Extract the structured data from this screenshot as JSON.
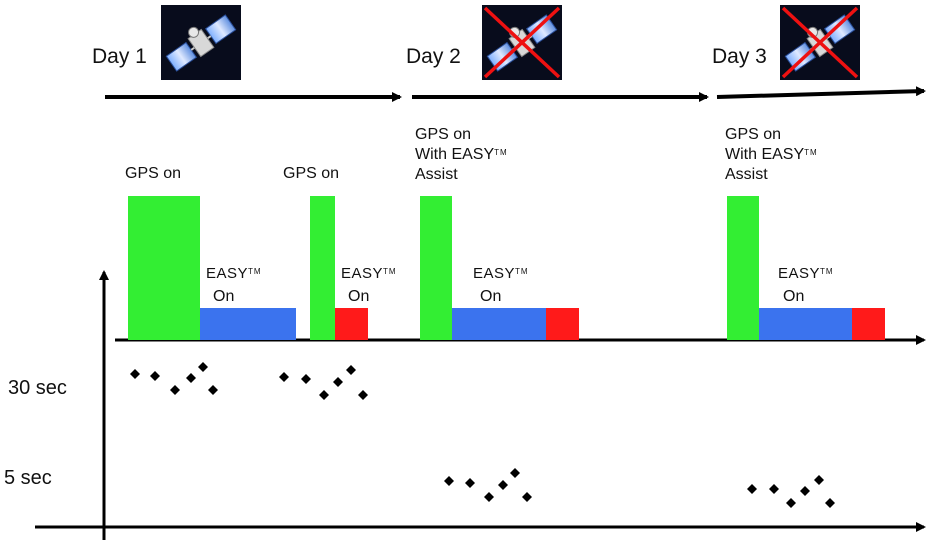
{
  "days": [
    {
      "id": "day1",
      "label": "Day 1",
      "satellite_icon": "satellite-icon",
      "crossed_out": false
    },
    {
      "id": "day2",
      "label": "Day 2",
      "satellite_icon": "satellite-icon",
      "crossed_out": true
    },
    {
      "id": "day3",
      "label": "Day 3",
      "satellite_icon": "satellite-icon",
      "crossed_out": true
    }
  ],
  "events": [
    {
      "id": "e1",
      "gps_label_lines": [
        "GPS on"
      ],
      "easy_label": "EASY",
      "easy_tm": "TM",
      "easy_on": "On"
    },
    {
      "id": "e2",
      "gps_label_lines": [
        "GPS on"
      ],
      "easy_label": "EASY",
      "easy_tm": "TM",
      "easy_on": "On"
    },
    {
      "id": "e3",
      "gps_label_lines": [
        "GPS on",
        "With EASY",
        "Assist"
      ],
      "gps_label_tm": "TM",
      "easy_label": "EASY",
      "easy_tm": "TM",
      "easy_on": "On"
    },
    {
      "id": "e4",
      "gps_label_lines": [
        "GPS on",
        "With EASY",
        "Assist"
      ],
      "gps_label_tm": "TM",
      "easy_label": "EASY",
      "easy_tm": "TM",
      "easy_on": "On"
    }
  ],
  "y_axis": {
    "labels": [
      "30 sec",
      "5 sec"
    ]
  },
  "colors": {
    "gps_on": "#33ee33",
    "easy_on": "#3b73ee",
    "red_segment": "#ff1a1a",
    "arrow": "#000000",
    "cross": "#ee1111"
  }
}
